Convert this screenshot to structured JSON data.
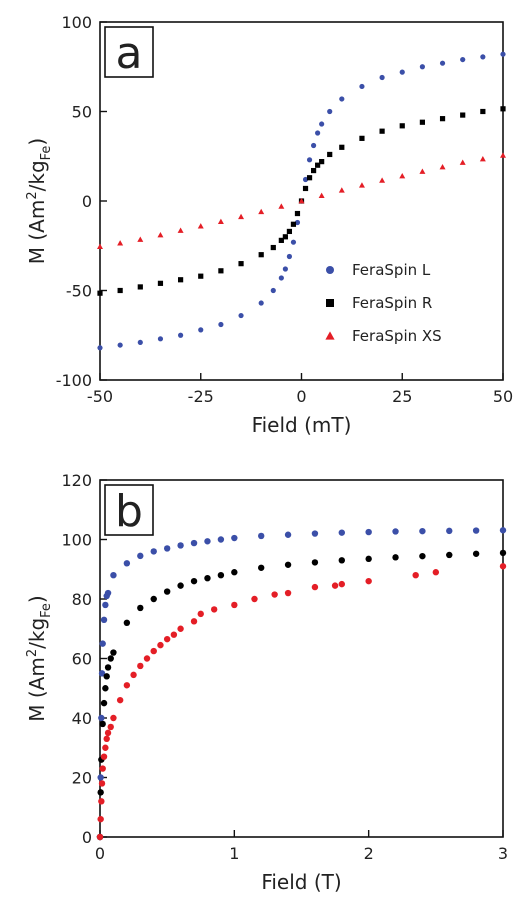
{
  "chart_data": [
    {
      "type": "scatter",
      "panel_label": "a",
      "xlabel": "Field (mT)",
      "ylabel": {
        "prefix": "M (Am",
        "sup": "2",
        "mid": "/kg",
        "sub": "Fe",
        "suffix": ")"
      },
      "xlim": [
        -50,
        50
      ],
      "ylim": [
        -100,
        100
      ],
      "x_ticks": [
        -50,
        -25,
        0,
        25,
        50
      ],
      "y_ticks": [
        -100,
        -50,
        0,
        50,
        100
      ],
      "grid": false,
      "legend_position": "bottom-right",
      "series": [
        {
          "name": "FeraSpin L",
          "color": "#3b4fa8",
          "marker": "circle",
          "x": [
            -50,
            -45,
            -40,
            -35,
            -30,
            -25,
            -20,
            -15,
            -10,
            -7,
            -5,
            -4,
            -3,
            -2,
            -1,
            0,
            1,
            2,
            3,
            4,
            5,
            7,
            10,
            15,
            20,
            25,
            30,
            35,
            40,
            45,
            50
          ],
          "y": [
            -82,
            -80.5,
            -79,
            -77,
            -75,
            -72,
            -69,
            -64,
            -57,
            -50,
            -43,
            -38,
            -31,
            -23,
            -12,
            0,
            12,
            23,
            31,
            38,
            43,
            50,
            57,
            64,
            69,
            72,
            75,
            77,
            79,
            80.5,
            82
          ]
        },
        {
          "name": "FeraSpin R",
          "color": "#000000",
          "marker": "square",
          "x": [
            -50,
            -45,
            -40,
            -35,
            -30,
            -25,
            -20,
            -15,
            -10,
            -7,
            -5,
            -4,
            -3,
            -2,
            -1,
            0,
            1,
            2,
            3,
            4,
            5,
            7,
            10,
            15,
            20,
            25,
            30,
            35,
            40,
            45,
            50
          ],
          "y": [
            -51.5,
            -50,
            -48,
            -46,
            -44,
            -42,
            -39,
            -35,
            -30,
            -26,
            -22,
            -20,
            -17,
            -13,
            -7,
            0,
            7,
            13,
            17,
            20,
            22,
            26,
            30,
            35,
            39,
            42,
            44,
            46,
            48,
            50,
            51.5
          ]
        },
        {
          "name": "FeraSpin XS",
          "color": "#e41e26",
          "marker": "triangle",
          "x": [
            -50,
            -45,
            -40,
            -35,
            -30,
            -25,
            -20,
            -15,
            -10,
            -5,
            0,
            5,
            10,
            15,
            20,
            25,
            30,
            35,
            40,
            45,
            50
          ],
          "y": [
            -25.5,
            -23.5,
            -21.5,
            -19,
            -16.5,
            -14,
            -11.5,
            -8.8,
            -6,
            -3,
            0,
            3,
            6,
            8.8,
            11.5,
            14,
            16.5,
            19,
            21.5,
            23.5,
            25.5
          ]
        }
      ]
    },
    {
      "type": "scatter",
      "panel_label": "b",
      "xlabel": "Field (T)",
      "ylabel": {
        "prefix": "M (Am",
        "sup": "2",
        "mid": "/kg",
        "sub": "Fe",
        "suffix": ")"
      },
      "xlim": [
        0,
        3
      ],
      "ylim": [
        0,
        120
      ],
      "x_ticks": [
        0,
        1,
        2,
        3
      ],
      "y_ticks": [
        0,
        20,
        40,
        60,
        80,
        100,
        120
      ],
      "grid": false,
      "legend_position": "none",
      "series": [
        {
          "name": "",
          "color": "#3b4fa8",
          "marker": "circle",
          "x": [
            0,
            0.005,
            0.01,
            0.015,
            0.02,
            0.03,
            0.04,
            0.05,
            0.06,
            0.1,
            0.2,
            0.3,
            0.4,
            0.5,
            0.6,
            0.7,
            0.8,
            0.9,
            1.0,
            1.2,
            1.4,
            1.6,
            1.8,
            2.0,
            2.2,
            2.4,
            2.6,
            2.8,
            3.0
          ],
          "y": [
            0,
            20,
            40,
            55,
            65,
            73,
            78,
            81,
            82,
            88,
            92,
            94.5,
            96,
            97,
            98,
            98.8,
            99.4,
            100,
            100.5,
            101.2,
            101.6,
            102,
            102.3,
            102.5,
            102.7,
            102.8,
            102.9,
            103,
            103.1
          ]
        },
        {
          "name": "",
          "color": "#000000",
          "marker": "circle",
          "x": [
            0,
            0.005,
            0.01,
            0.02,
            0.03,
            0.04,
            0.05,
            0.06,
            0.08,
            0.1,
            0.2,
            0.3,
            0.4,
            0.5,
            0.6,
            0.7,
            0.8,
            0.9,
            1.0,
            1.2,
            1.4,
            1.6,
            1.8,
            2.0,
            2.2,
            2.4,
            2.6,
            2.8,
            3.0
          ],
          "y": [
            0,
            15,
            26,
            38,
            45,
            50,
            54,
            57,
            60,
            62,
            72,
            77,
            80,
            82.5,
            84.5,
            86,
            87,
            88,
            89,
            90.5,
            91.5,
            92.3,
            93,
            93.5,
            94,
            94.4,
            94.8,
            95.2,
            95.5
          ]
        },
        {
          "name": "",
          "color": "#e41e26",
          "marker": "circle",
          "x": [
            0,
            0.005,
            0.01,
            0.015,
            0.02,
            0.03,
            0.04,
            0.05,
            0.06,
            0.08,
            0.1,
            0.15,
            0.2,
            0.25,
            0.3,
            0.35,
            0.4,
            0.45,
            0.5,
            0.55,
            0.6,
            0.7,
            0.75,
            0.85,
            1.0,
            1.15,
            1.3,
            1.4,
            1.6,
            1.75,
            1.8,
            2.0,
            2.35,
            2.5,
            3.0
          ],
          "y": [
            0,
            6,
            12,
            18,
            23,
            27,
            30,
            33,
            35,
            37,
            40,
            46,
            51,
            54.5,
            57.5,
            60,
            62.5,
            64.5,
            66.5,
            68,
            70,
            72.5,
            75,
            76.5,
            78,
            80,
            81.5,
            82,
            84,
            84.5,
            85,
            86,
            88,
            89,
            91
          ]
        }
      ]
    }
  ]
}
